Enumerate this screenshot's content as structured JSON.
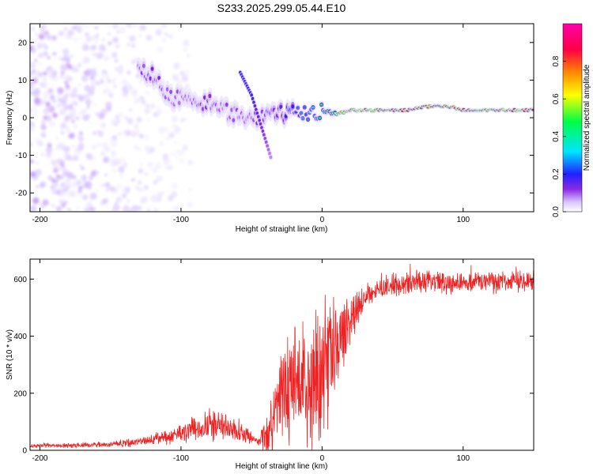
{
  "figure_title": "S233.2025.299.05.44.E10",
  "colors": {
    "snr_line": "#ee2222",
    "frame": "#000000",
    "background": "#ffffff"
  },
  "chart_data": [
    {
      "type": "heatmap",
      "title": "S233.2025.299.05.44.E10",
      "xlabel": "Height of straight line (km)",
      "ylabel": "Frequency (Hz)",
      "xlim": [
        -207,
        150
      ],
      "ylim": [
        -25,
        25
      ],
      "xticks": [
        -200,
        -100,
        0,
        100
      ],
      "yticks": [
        -20,
        -10,
        0,
        10,
        20
      ],
      "colorbar": {
        "label": "Normalized spectral amplitude",
        "range": [
          0,
          1
        ],
        "ticks": [
          "0.0",
          "0.2",
          "0.4",
          "0.6",
          "0.8"
        ],
        "colormap": [
          "#ffffff",
          "#d9c8ff",
          "#8a2be2",
          "#2020ff",
          "#00e5ff",
          "#00ff44",
          "#ffff00",
          "#ff8800",
          "#ff0044",
          "#ff00aa"
        ]
      },
      "ridge": [
        {
          "x": -130,
          "f": 12,
          "a": 0.22
        },
        {
          "x": -120,
          "f": 12,
          "a": 0.25
        },
        {
          "x": -110,
          "f": 6,
          "a": 0.2
        },
        {
          "x": -100,
          "f": 5,
          "a": 0.2
        },
        {
          "x": -90,
          "f": 4,
          "a": 0.22
        },
        {
          "x": -80,
          "f": 4,
          "a": 0.25
        },
        {
          "x": -70,
          "f": 2,
          "a": 0.2
        },
        {
          "x": -60,
          "f": 1,
          "a": 0.2
        },
        {
          "x": -50,
          "f": 0,
          "a": 0.22
        },
        {
          "x": -40,
          "f": 1,
          "a": 0.25
        },
        {
          "x": -30,
          "f": 1,
          "a": 0.3
        },
        {
          "x": -20,
          "f": 1,
          "a": 0.35
        },
        {
          "x": -10,
          "f": 1,
          "a": 0.45
        },
        {
          "x": 0,
          "f": 2,
          "a": 0.55
        },
        {
          "x": 10,
          "f": 1,
          "a": 0.7
        },
        {
          "x": 20,
          "f": 2,
          "a": 0.8
        },
        {
          "x": 40,
          "f": 2,
          "a": 0.92
        },
        {
          "x": 60,
          "f": 2,
          "a": 0.92
        },
        {
          "x": 75,
          "f": 3,
          "a": 0.95
        },
        {
          "x": 90,
          "f": 3,
          "a": 0.95
        },
        {
          "x": 100,
          "f": 2,
          "a": 0.9
        },
        {
          "x": 120,
          "f": 2,
          "a": 0.9
        },
        {
          "x": 150,
          "f": 2,
          "a": 0.88
        }
      ],
      "secondary_ridge": [
        {
          "x": -58,
          "f": 12,
          "a": 0.3
        },
        {
          "x": -50,
          "f": 6,
          "a": 0.3
        },
        {
          "x": -45,
          "f": 0,
          "a": 0.25
        },
        {
          "x": -40,
          "f": -6,
          "a": 0.2
        },
        {
          "x": -36,
          "f": -11,
          "a": 0.15
        }
      ]
    },
    {
      "type": "line",
      "xlabel": "Height of straight line (km)",
      "ylabel": "SNR (10 * v/v)",
      "xlim": [
        -207,
        150
      ],
      "ylim": [
        0,
        670
      ],
      "xticks": [
        -200,
        -100,
        0,
        100
      ],
      "yticks": [
        0,
        200,
        400,
        600
      ],
      "series": [
        {
          "name": "SNR",
          "envelope": [
            {
              "x": -207,
              "mean": 15,
              "spread": 8
            },
            {
              "x": -150,
              "mean": 20,
              "spread": 12
            },
            {
              "x": -120,
              "mean": 35,
              "spread": 20
            },
            {
              "x": -100,
              "mean": 60,
              "spread": 40
            },
            {
              "x": -80,
              "mean": 90,
              "spread": 70
            },
            {
              "x": -60,
              "mean": 70,
              "spread": 50
            },
            {
              "x": -45,
              "mean": 30,
              "spread": 15
            },
            {
              "x": -35,
              "mean": 80,
              "spread": 150
            },
            {
              "x": -30,
              "mean": 200,
              "spread": 220
            },
            {
              "x": -20,
              "mean": 250,
              "spread": 250
            },
            {
              "x": -10,
              "mean": 200,
              "spread": 250
            },
            {
              "x": 0,
              "mean": 280,
              "spread": 280
            },
            {
              "x": 10,
              "mean": 350,
              "spread": 200
            },
            {
              "x": 20,
              "mean": 460,
              "spread": 100
            },
            {
              "x": 30,
              "mean": 540,
              "spread": 50
            },
            {
              "x": 40,
              "mean": 570,
              "spread": 45
            },
            {
              "x": 60,
              "mean": 585,
              "spread": 50
            },
            {
              "x": 100,
              "mean": 590,
              "spread": 45
            },
            {
              "x": 150,
              "mean": 590,
              "spread": 45
            }
          ]
        }
      ]
    }
  ]
}
